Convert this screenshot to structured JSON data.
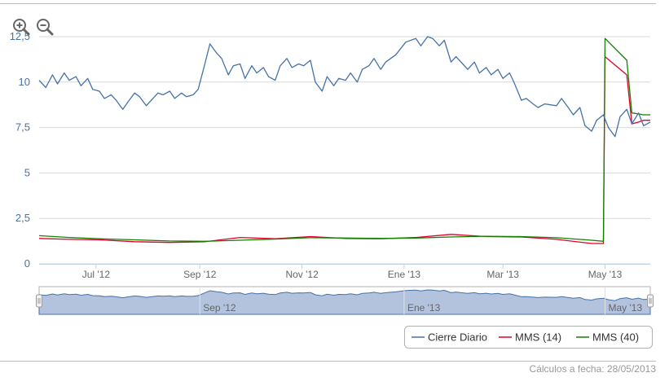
{
  "chart_data": {
    "type": "line",
    "title": "",
    "xlabel": "",
    "ylabel": "",
    "ylim": [
      0,
      12.5
    ],
    "yticks": [
      "0",
      "2,5",
      "5",
      "7,5",
      "10",
      "12,5"
    ],
    "ytick_values": [
      0,
      2.5,
      5,
      7.5,
      10,
      12.5
    ],
    "xlim": [
      "2012-05-28",
      "2013-05-28"
    ],
    "xticks": [
      {
        "label": "Jul '12",
        "date": "2012-07-01"
      },
      {
        "label": "Sep '12",
        "date": "2012-09-01"
      },
      {
        "label": "Nov '12",
        "date": "2012-11-01"
      },
      {
        "label": "Ene '13",
        "date": "2013-01-01"
      },
      {
        "label": "Mar '13",
        "date": "2013-03-01"
      },
      {
        "label": "May '13",
        "date": "2013-05-01"
      }
    ],
    "grid": true,
    "legend_position": "bottom-right",
    "series": [
      {
        "name": "Cierre Diario",
        "color": "#4572a7",
        "x": [
          "2012-05-28",
          "2012-06-01",
          "2012-06-05",
          "2012-06-08",
          "2012-06-12",
          "2012-06-15",
          "2012-06-19",
          "2012-06-22",
          "2012-06-26",
          "2012-06-29",
          "2012-07-03",
          "2012-07-06",
          "2012-07-10",
          "2012-07-13",
          "2012-07-17",
          "2012-07-20",
          "2012-07-24",
          "2012-07-27",
          "2012-07-31",
          "2012-08-03",
          "2012-08-07",
          "2012-08-10",
          "2012-08-14",
          "2012-08-17",
          "2012-08-21",
          "2012-08-24",
          "2012-08-28",
          "2012-08-31",
          "2012-09-04",
          "2012-09-07",
          "2012-09-11",
          "2012-09-14",
          "2012-09-18",
          "2012-09-21",
          "2012-09-25",
          "2012-09-28",
          "2012-10-02",
          "2012-10-05",
          "2012-10-09",
          "2012-10-12",
          "2012-10-16",
          "2012-10-19",
          "2012-10-23",
          "2012-10-26",
          "2012-10-30",
          "2012-11-02",
          "2012-11-06",
          "2012-11-09",
          "2012-11-13",
          "2012-11-16",
          "2012-11-20",
          "2012-11-23",
          "2012-11-27",
          "2012-11-30",
          "2012-12-04",
          "2012-12-07",
          "2012-12-11",
          "2012-12-14",
          "2012-12-18",
          "2012-12-21",
          "2012-12-27",
          "2013-01-02",
          "2013-01-08",
          "2013-01-11",
          "2013-01-15",
          "2013-01-18",
          "2013-01-22",
          "2013-01-25",
          "2013-01-29",
          "2013-02-01",
          "2013-02-05",
          "2013-02-08",
          "2013-02-12",
          "2013-02-15",
          "2013-02-19",
          "2013-02-22",
          "2013-02-26",
          "2013-03-01",
          "2013-03-05",
          "2013-03-08",
          "2013-03-12",
          "2013-03-15",
          "2013-03-19",
          "2013-03-22",
          "2013-03-26",
          "2013-04-02",
          "2013-04-05",
          "2013-04-09",
          "2013-04-12",
          "2013-04-16",
          "2013-04-19",
          "2013-04-23",
          "2013-04-26",
          "2013-04-30",
          "2013-05-03",
          "2013-05-07",
          "2013-05-10",
          "2013-05-14",
          "2013-05-17",
          "2013-05-21",
          "2013-05-24",
          "2013-05-28"
        ],
        "values": [
          10.1,
          9.7,
          10.4,
          9.9,
          10.5,
          10.1,
          10.3,
          9.8,
          10.2,
          9.6,
          9.5,
          9.1,
          9.3,
          9.0,
          8.5,
          8.9,
          9.4,
          9.2,
          8.7,
          9.0,
          9.4,
          9.3,
          9.5,
          9.1,
          9.4,
          9.2,
          9.3,
          9.6,
          11.0,
          12.1,
          11.6,
          11.3,
          10.4,
          10.9,
          11.0,
          10.2,
          10.9,
          10.5,
          10.8,
          10.3,
          10.1,
          10.9,
          11.3,
          10.8,
          11.0,
          10.9,
          11.2,
          10.0,
          9.5,
          10.3,
          9.8,
          10.2,
          10.1,
          10.5,
          10.0,
          10.7,
          10.9,
          11.3,
          10.7,
          11.1,
          11.5,
          12.2,
          12.4,
          12.0,
          12.5,
          12.4,
          12.0,
          12.3,
          11.1,
          11.4,
          11.0,
          10.7,
          11.1,
          10.5,
          10.8,
          10.4,
          10.7,
          10.2,
          10.5,
          9.9,
          9.0,
          9.1,
          8.8,
          8.6,
          8.8,
          8.7,
          9.1,
          8.6,
          8.2,
          8.6,
          7.6,
          7.3,
          7.9,
          8.2,
          7.5,
          7.0,
          8.1,
          8.5,
          7.7,
          8.3,
          7.6,
          7.8
        ]
      },
      {
        "name": "MMS (14)",
        "color": "#e0002a",
        "x": [
          "2012-05-28",
          "2012-06-15",
          "2012-07-03",
          "2012-07-24",
          "2012-08-14",
          "2012-09-04",
          "2012-09-25",
          "2012-10-16",
          "2012-11-06",
          "2012-11-27",
          "2012-12-18",
          "2013-01-08",
          "2013-01-29",
          "2013-02-19",
          "2013-03-12",
          "2013-04-02",
          "2013-04-23",
          "2013-04-30",
          "2013-05-01",
          "2013-05-14",
          "2013-05-17",
          "2013-05-21",
          "2013-05-24",
          "2013-05-28"
        ],
        "values": [
          1.4,
          1.35,
          1.32,
          1.22,
          1.18,
          1.22,
          1.45,
          1.38,
          1.5,
          1.4,
          1.38,
          1.45,
          1.62,
          1.5,
          1.48,
          1.35,
          1.12,
          1.12,
          11.4,
          10.4,
          7.7,
          7.8,
          7.9,
          7.9
        ]
      },
      {
        "name": "MMS (40)",
        "color": "#138000",
        "x": [
          "2012-05-28",
          "2012-06-15",
          "2012-07-03",
          "2012-07-24",
          "2012-08-14",
          "2012-09-04",
          "2012-09-25",
          "2012-10-16",
          "2012-11-06",
          "2012-11-27",
          "2012-12-18",
          "2013-01-08",
          "2013-01-29",
          "2013-02-19",
          "2013-03-12",
          "2013-04-02",
          "2013-04-23",
          "2013-04-30",
          "2013-05-01",
          "2013-05-14",
          "2013-05-17",
          "2013-05-21",
          "2013-05-24",
          "2013-05-28"
        ],
        "values": [
          1.55,
          1.45,
          1.38,
          1.32,
          1.26,
          1.24,
          1.3,
          1.36,
          1.44,
          1.42,
          1.4,
          1.42,
          1.48,
          1.52,
          1.5,
          1.44,
          1.3,
          1.24,
          12.4,
          11.2,
          8.3,
          8.25,
          8.2,
          8.2
        ]
      }
    ],
    "navigator": {
      "labels": [
        "Sep '12",
        "Ene '13",
        "May '13"
      ],
      "label_dates": [
        "2012-09-01",
        "2013-01-01",
        "2013-05-01"
      ],
      "fill_color": "#b3c3dd",
      "line_color": "#4572a7"
    }
  },
  "footer": {
    "note": "Cálculos a fecha: 28/05/2013"
  }
}
